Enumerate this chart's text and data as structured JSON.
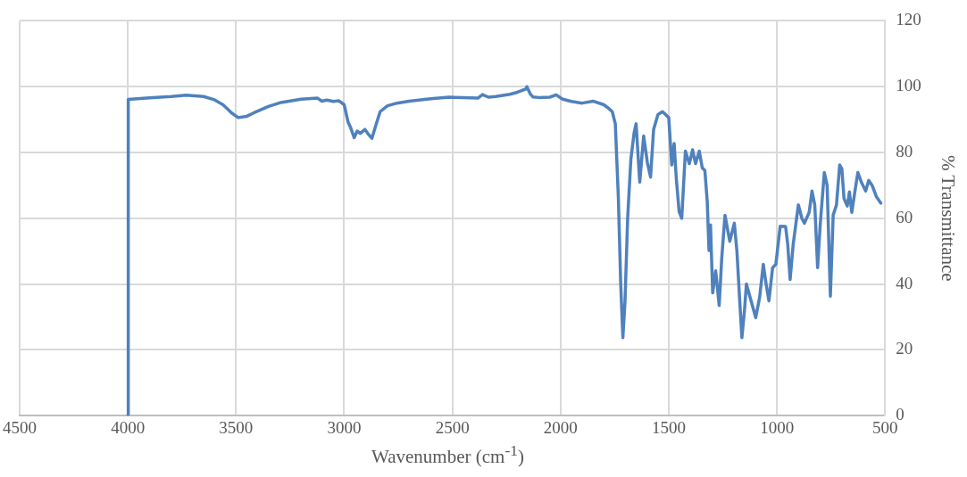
{
  "chart_data": {
    "type": "line",
    "xlabel": "Wavenumber  (cm$^{-1}$)",
    "ylabel": "% Transmittance",
    "xlim": [
      4500,
      500
    ],
    "xticks": [
      4500,
      4000,
      3500,
      3000,
      2500,
      2000,
      1500,
      1000,
      500
    ],
    "ylim": [
      0,
      120
    ],
    "yticks": [
      0,
      20,
      40,
      60,
      80,
      100,
      120
    ],
    "grid": true,
    "legend": false,
    "marker": "none",
    "line_style": "solid",
    "series": [
      {
        "color": "#4f81bd",
        "x": [
          4000,
          3998,
          3900,
          3800,
          3730,
          3650,
          3603,
          3560,
          3520,
          3490,
          3450,
          3419,
          3350,
          3292,
          3200,
          3123,
          3103,
          3080,
          3050,
          3024,
          3000,
          2982,
          2970,
          2954,
          2940,
          2926,
          2904,
          2888,
          2872,
          2855,
          2834,
          2800,
          2756,
          2700,
          2600,
          2516,
          2450,
          2382,
          2361,
          2333,
          2300,
          2234,
          2200,
          2177,
          2160,
          2156,
          2140,
          2128,
          2100,
          2050,
          2020,
          2000,
          1990,
          1950,
          1900,
          1850,
          1800,
          1780,
          1761,
          1747,
          1733,
          1722,
          1712,
          1702,
          1690,
          1675,
          1660,
          1651,
          1634,
          1616,
          1599,
          1584,
          1570,
          1550,
          1529,
          1500,
          1486,
          1475,
          1465,
          1452,
          1440,
          1430,
          1423,
          1405,
          1390,
          1376,
          1359,
          1345,
          1333,
          1322,
          1314,
          1307,
          1297,
          1283,
          1267,
          1255,
          1240,
          1218,
          1197,
          1185,
          1172,
          1162,
          1150,
          1141,
          1120,
          1098,
          1080,
          1063,
          1050,
          1037,
          1020,
          1005,
          985,
          960,
          950,
          939,
          925,
          901,
          885,
          873,
          851,
          838,
          825,
          812,
          800,
          781,
          768,
          753,
          740,
          725,
          710,
          700,
          690,
          675,
          665,
          654,
          640,
          626,
          610,
          590,
          576,
          560,
          540,
          520
        ],
        "values": [
          0,
          96.1,
          96.6,
          97,
          97.4,
          97,
          96.1,
          94.5,
          92,
          90.6,
          91,
          92,
          94,
          95.2,
          96.2,
          96.5,
          95.6,
          95.9,
          95.5,
          95.7,
          94.5,
          89.2,
          87.5,
          84.5,
          86.5,
          85.8,
          87,
          85.5,
          84.3,
          88,
          92.4,
          94.2,
          95,
          95.6,
          96.3,
          96.8,
          96.7,
          96.5,
          97.6,
          96.8,
          97,
          97.7,
          98.3,
          98.9,
          99.3,
          100,
          97.8,
          96.9,
          96.7,
          96.8,
          97.5,
          96.6,
          96.2,
          95.5,
          95,
          95.6,
          94.5,
          93.5,
          92.4,
          88.7,
          66.4,
          40,
          23.7,
          35,
          60,
          78,
          86,
          88.7,
          71,
          85,
          77,
          72.5,
          87,
          91.5,
          92.4,
          90.6,
          76.2,
          82.7,
          72,
          62,
          60,
          72,
          80.4,
          76.6,
          80.8,
          76.6,
          80.4,
          75.3,
          74.5,
          65,
          50.2,
          58,
          37.3,
          44,
          33.5,
          48,
          60.9,
          53,
          58.5,
          50,
          35,
          23.7,
          32,
          40,
          35,
          29.8,
          36,
          46,
          40,
          34.9,
          45,
          46,
          57.6,
          57.5,
          52,
          41.4,
          52,
          64.1,
          60,
          58.5,
          61.8,
          68.3,
          64,
          45,
          58,
          73.9,
          70,
          36.3,
          61,
          64,
          76.2,
          75,
          66,
          63.7,
          68,
          61.8,
          68,
          73.9,
          71,
          68.3,
          71.5,
          70,
          66.5,
          64.6
        ]
      }
    ]
  }
}
